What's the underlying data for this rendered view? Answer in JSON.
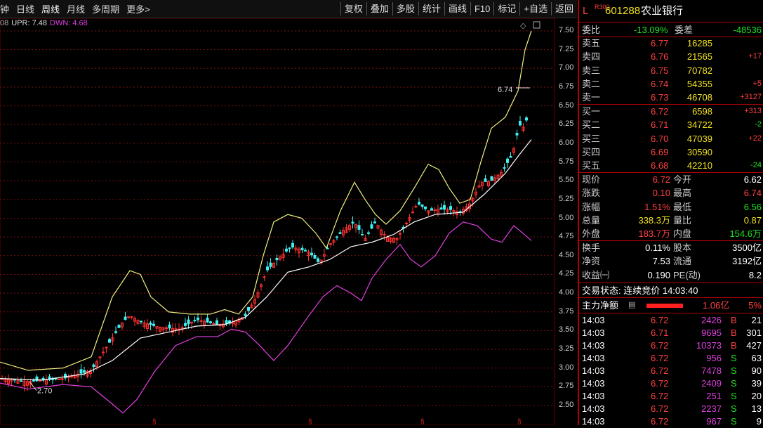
{
  "toolbar": {
    "periods": [
      "钟",
      "日线",
      "周线",
      "月线",
      "多周期",
      "更多>"
    ],
    "active": "周线",
    "tools": [
      "复权",
      "叠加",
      "多股",
      "统计",
      "画线",
      "F10",
      "标记",
      "+自选",
      "返回"
    ]
  },
  "indicator": {
    "prefix": "08",
    "upr": "UPR: 7.48",
    "dwn": "DWN: 4.68"
  },
  "chart_data": {
    "type": "candlestick",
    "ylim": [
      2.4,
      7.6
    ],
    "yticks": [
      "7.50",
      "7.25",
      "7.00",
      "6.75",
      "6.50",
      "6.25",
      "6.00",
      "5.75",
      "5.50",
      "5.25",
      "5.00",
      "4.75",
      "4.50",
      "4.25",
      "4.00",
      "3.75",
      "3.50",
      "3.25",
      "3.00",
      "2.75",
      "2.50"
    ],
    "annotations": {
      "high": "6.74",
      "low": "2.70"
    },
    "colors": {
      "up": "#ff3030",
      "down": "#40f0f0",
      "upper": "#f0f080",
      "mid": "#ffffff",
      "lower": "#e040e0",
      "grid": "#7a1010"
    }
  },
  "quote": {
    "market_tag": "L",
    "index_tag": "R300",
    "code": "601288",
    "name": "农业银行",
    "weibi_label": "委比",
    "weibi": "-13.09%",
    "weicha_label": "委差",
    "weicha": "-48536",
    "asks": [
      {
        "label": "卖五",
        "price": "6.77",
        "vol": "16285",
        "chg": ""
      },
      {
        "label": "卖四",
        "price": "6.76",
        "vol": "21565",
        "chg": "+17"
      },
      {
        "label": "卖三",
        "price": "6.75",
        "vol": "70782",
        "chg": ""
      },
      {
        "label": "卖二",
        "price": "6.74",
        "vol": "54355",
        "chg": "+5"
      },
      {
        "label": "卖一",
        "price": "6.73",
        "vol": "46708",
        "chg": "+3127"
      }
    ],
    "bids": [
      {
        "label": "买一",
        "price": "6.72",
        "vol": "6598",
        "chg": "+313"
      },
      {
        "label": "买二",
        "price": "6.71",
        "vol": "34722",
        "chg": "-2"
      },
      {
        "label": "买三",
        "price": "6.70",
        "vol": "47039",
        "chg": "+22"
      },
      {
        "label": "买四",
        "price": "6.69",
        "vol": "30590",
        "chg": ""
      },
      {
        "label": "买五",
        "price": "6.68",
        "vol": "42210",
        "chg": "-24"
      }
    ],
    "stats": [
      {
        "l1": "现价",
        "v1": "6.72",
        "l2": "今开",
        "v2": "6.62"
      },
      {
        "l1": "涨跌",
        "v1": "0.10",
        "l2": "最高",
        "v2": "6.74"
      },
      {
        "l1": "涨幅",
        "v1": "1.51%",
        "l2": "最低",
        "v2": "6.56"
      },
      {
        "l1": "总量",
        "v1": "338.3万",
        "l2": "量比",
        "v2": "0.87"
      },
      {
        "l1": "外盘",
        "v1": "183.7万",
        "l2": "内盘",
        "v2": "154.6万"
      }
    ],
    "stats2": [
      {
        "l1": "换手",
        "v1": "0.11%",
        "l2": "股本",
        "v2": "3500亿"
      },
      {
        "l1": "净资",
        "v1": "7.53",
        "l2": "流通",
        "v2": "3192亿"
      },
      {
        "l1": "收益㈠",
        "v1": "0.190",
        "l2": "PE(动)",
        "v2": "8.2"
      }
    ],
    "trade_state": "交易状态: 连续竞价 14:03:40",
    "main_flow_label": "主力净额",
    "main_flow": "1.06亿",
    "main_flow_pct": "5%",
    "ticks": [
      {
        "t": "14:03",
        "p": "6.72",
        "v": "2426",
        "bs": "B",
        "n": "21"
      },
      {
        "t": "14:03",
        "p": "6.71",
        "v": "9695",
        "bs": "B",
        "n": "301"
      },
      {
        "t": "14:03",
        "p": "6.72",
        "v": "10373",
        "bs": "B",
        "n": "427"
      },
      {
        "t": "14:03",
        "p": "6.72",
        "v": "956",
        "bs": "S",
        "n": "63"
      },
      {
        "t": "14:03",
        "p": "6.72",
        "v": "7478",
        "bs": "S",
        "n": "90"
      },
      {
        "t": "14:03",
        "p": "6.72",
        "v": "2409",
        "bs": "S",
        "n": "39"
      },
      {
        "t": "14:03",
        "p": "6.72",
        "v": "251",
        "bs": "S",
        "n": "20"
      },
      {
        "t": "14:03",
        "p": "6.72",
        "v": "2237",
        "bs": "S",
        "n": "13"
      },
      {
        "t": "14:03",
        "p": "6.72",
        "v": "967",
        "bs": "S",
        "n": "9"
      }
    ]
  }
}
